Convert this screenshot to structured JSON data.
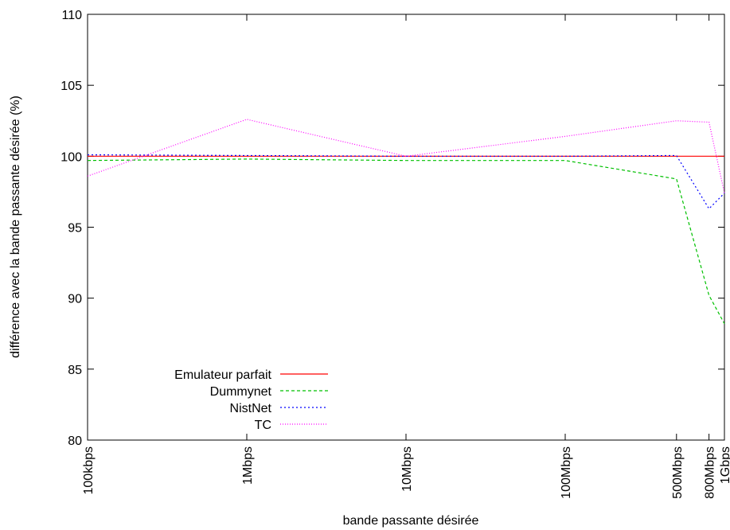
{
  "chart_data": {
    "type": "line",
    "xscale": "log",
    "xlabel": "bande passante désirée",
    "ylabel": "différence avec la bande passante désirée (%)",
    "ylim": [
      80,
      110
    ],
    "yticks": [
      80,
      85,
      90,
      95,
      100,
      105,
      110
    ],
    "xticks": [
      {
        "label": "100kbps",
        "value": 0.1
      },
      {
        "label": "1Mbps",
        "value": 1
      },
      {
        "label": "10Mbps",
        "value": 10
      },
      {
        "label": "100Mbps",
        "value": 100
      },
      {
        "label": "500Mbps",
        "value": 500
      },
      {
        "label": "800Mbps",
        "value": 800
      },
      {
        "label": "1Gbps",
        "value": 1000
      }
    ],
    "legend_position": "bottom-left",
    "series": [
      {
        "name": "Emulateur parfait",
        "color": "#ff0000",
        "dash": "solid",
        "values": [
          100,
          100,
          100,
          100,
          100,
          100,
          100
        ]
      },
      {
        "name": "Dummynet",
        "color": "#00c000",
        "dash": "dashed",
        "values": [
          99.7,
          99.8,
          99.7,
          99.7,
          98.4,
          90.2,
          88.2
        ]
      },
      {
        "name": "NistNet",
        "color": "#0000ff",
        "dash": "dotted",
        "values": [
          100.1,
          100.05,
          100.0,
          100.0,
          100.05,
          96.3,
          97.4
        ]
      },
      {
        "name": "TC",
        "color": "#ff00ff",
        "dash": "fine-dotted",
        "values": [
          98.6,
          102.6,
          100.0,
          101.4,
          102.5,
          102.4,
          97.4
        ]
      }
    ]
  }
}
